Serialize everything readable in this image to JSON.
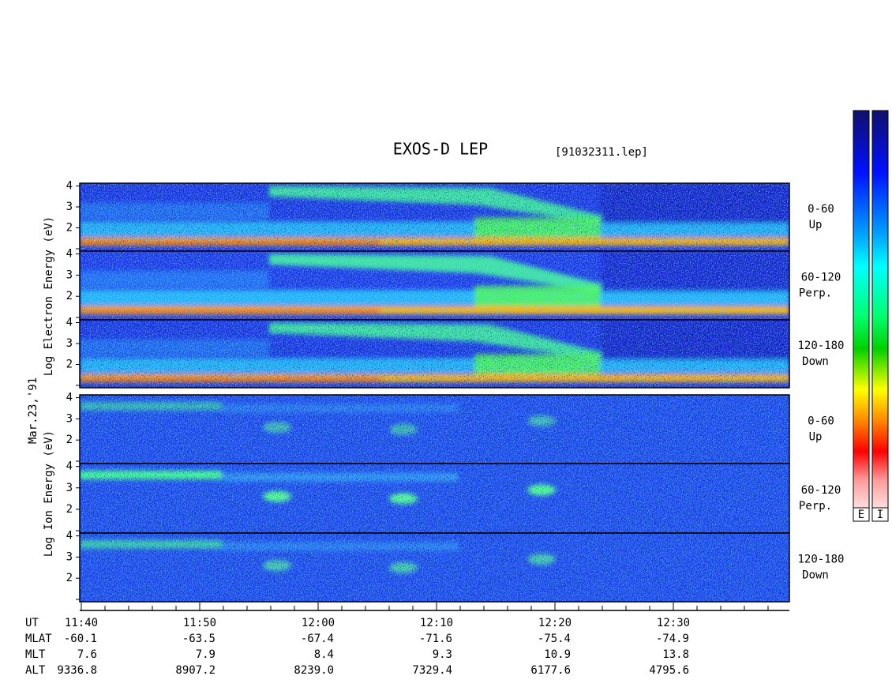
{
  "title": "EXOS-D LEP",
  "file": "[91032311.lep]",
  "date": "Mar.23,'91",
  "groups": [
    {
      "ylabel": "Log Electron Energy (eV)",
      "panels": [
        {
          "angle": "0-60",
          "dir": "Up"
        },
        {
          "angle": "60-120",
          "dir": "Perp."
        },
        {
          "angle": "120-180",
          "dir": "Down"
        }
      ]
    },
    {
      "ylabel": "Log Ion Energy (eV)",
      "panels": [
        {
          "angle": "0-60",
          "dir": "Up"
        },
        {
          "angle": "60-120",
          "dir": "Perp."
        },
        {
          "angle": "120-180",
          "dir": "Down"
        }
      ]
    }
  ],
  "yticks": [
    4,
    3,
    2
  ],
  "colorbars": [
    "E",
    "I"
  ],
  "xaxis": {
    "label": "UT",
    "times": [
      "11:40",
      "11:50",
      "12:00",
      "12:10",
      "12:20",
      "12:30"
    ]
  },
  "rows": [
    {
      "label": "MLAT",
      "values": [
        "-60.1",
        "-63.5",
        "-67.4",
        "-71.6",
        "-75.4",
        "-74.9"
      ]
    },
    {
      "label": "MLT",
      "values": [
        "7.6",
        "7.9",
        "8.4",
        "9.3",
        "10.9",
        "13.8"
      ]
    },
    {
      "label": "ALT",
      "values": [
        "9336.8",
        "8907.2",
        "8239.0",
        "7329.4",
        "6177.6",
        "4795.6"
      ]
    }
  ]
}
